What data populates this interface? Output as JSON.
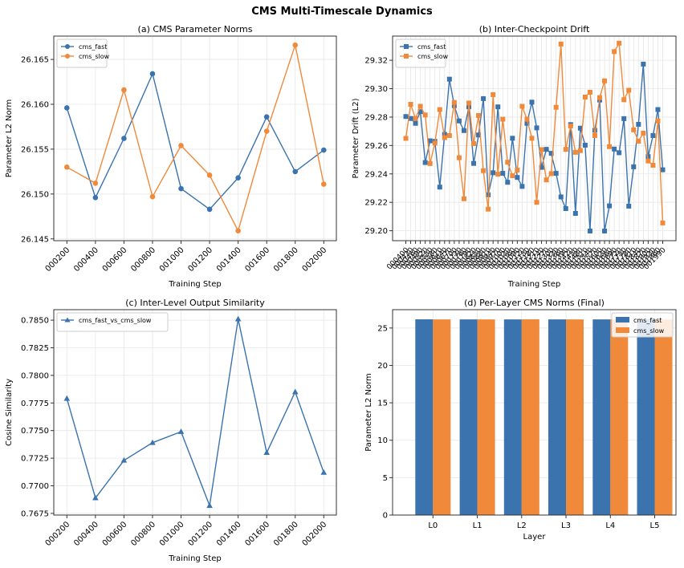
{
  "figure": {
    "title": "CMS Multi-Timescale Dynamics",
    "colors": {
      "cms_fast": "#3a73ae",
      "cms_slow": "#f0893a"
    }
  },
  "chart_data": [
    {
      "id": "a",
      "type": "line",
      "title": "(a) CMS Parameter Norms",
      "xlabel": "Training Step",
      "ylabel": "Parameter L2 Norm",
      "categories": [
        "000200",
        "000400",
        "000600",
        "000800",
        "001000",
        "001200",
        "001400",
        "001600",
        "001800",
        "002000"
      ],
      "ylim": [
        26.1448,
        26.1676
      ],
      "yticks": [
        26.145,
        26.15,
        26.155,
        26.16,
        26.165
      ],
      "ytick_labels": [
        "26.145",
        "26.150",
        "26.155",
        "26.160",
        "26.165"
      ],
      "grid": true,
      "legend": "top-left",
      "marker": "circle",
      "series": [
        {
          "name": "cms_fast",
          "color": "#3a73ae",
          "values": [
            26.1596,
            26.1496,
            26.1562,
            26.1634,
            26.1506,
            26.1483,
            26.1518,
            26.1586,
            26.1525,
            26.1549
          ]
        },
        {
          "name": "cms_slow",
          "color": "#f0893a",
          "values": [
            26.153,
            26.1512,
            26.1616,
            26.1497,
            26.1554,
            26.1521,
            26.1459,
            26.157,
            26.1666,
            26.1511
          ]
        }
      ]
    },
    {
      "id": "b",
      "type": "line",
      "title": "(b) Inter-Checkpoint Drift",
      "xlabel": "Training Step",
      "ylabel": "Parameter Drift (L2)",
      "ylim": [
        29.193,
        29.337
      ],
      "yticks": [
        29.2,
        29.22,
        29.24,
        29.26,
        29.28,
        29.3,
        29.32
      ],
      "ytick_labels": [
        "29.20",
        "29.22",
        "29.24",
        "29.26",
        "29.28",
        "29.30",
        "29.32"
      ],
      "grid": true,
      "legend": "top-left",
      "marker": "square",
      "xtick_label_note": "54 overlapping step labels, 000400 to 002000",
      "first_xtick_label": "000400",
      "last_xtick_label": "002000",
      "series": [
        {
          "name": "cms_fast",
          "color": "#3a73ae",
          "values": [
            29.2804,
            29.279,
            29.2756,
            29.2838,
            29.248,
            29.2633,
            29.2629,
            29.2307,
            29.2678,
            29.3067,
            29.288,
            29.2773,
            29.2705,
            29.2872,
            29.2474,
            29.2674,
            29.293,
            29.2253,
            29.2408,
            29.2872,
            29.2404,
            29.2341,
            29.2651,
            29.2375,
            29.2312,
            29.2756,
            29.2905,
            29.2724,
            29.2446,
            29.2573,
            29.2545,
            29.2404,
            29.2238,
            29.2156,
            29.2747,
            29.2122,
            29.2722,
            29.2602,
            29.1998,
            29.2707,
            29.292,
            29.1998,
            29.2175,
            29.2575,
            29.2549,
            29.2789,
            29.2173,
            29.245,
            29.2749,
            29.3173,
            29.2522,
            29.267,
            29.2853,
            29.2429
          ]
        },
        {
          "name": "cms_slow",
          "color": "#f0893a",
          "values": [
            29.265,
            29.289,
            29.279,
            29.2876,
            29.2815,
            29.2473,
            29.2617,
            29.2853,
            29.2655,
            29.267,
            29.2903,
            29.2514,
            29.2225,
            29.2899,
            29.2613,
            29.2811,
            29.2423,
            29.2152,
            29.2958,
            29.2398,
            29.2785,
            29.2482,
            29.2387,
            29.2427,
            29.2876,
            29.2785,
            29.2651,
            29.22,
            29.2571,
            29.2358,
            29.2402,
            29.2869,
            29.3314,
            29.2573,
            29.2737,
            29.2552,
            29.2564,
            29.2941,
            29.2975,
            29.267,
            29.2937,
            29.3055,
            29.2592,
            29.3261,
            29.332,
            29.2922,
            29.2989,
            29.271,
            29.263,
            29.2687,
            29.2491,
            29.2461,
            29.2773,
            29.2055
          ]
        }
      ]
    },
    {
      "id": "c",
      "type": "line",
      "title": "(c) Inter-Level Output Similarity",
      "xlabel": "Training Step",
      "ylabel": "Cosine Similarity",
      "categories": [
        "000200",
        "000400",
        "000600",
        "000800",
        "001000",
        "001200",
        "001400",
        "001600",
        "001800",
        "002000"
      ],
      "ylim": [
        0.76735,
        0.78595
      ],
      "yticks": [
        0.7675,
        0.77,
        0.7725,
        0.775,
        0.7775,
        0.78,
        0.7825,
        0.785
      ],
      "ytick_labels": [
        "0.7675",
        "0.7700",
        "0.7725",
        "0.7750",
        "0.7775",
        "0.7800",
        "0.7825",
        "0.7850"
      ],
      "grid": true,
      "legend": "top-left",
      "marker": "triangle",
      "series": [
        {
          "name": "cms_fast_vs_cms_slow",
          "color": "#3a73ae",
          "values": [
            0.7779,
            0.7689,
            0.7723,
            0.7739,
            0.7749,
            0.7682,
            0.7851,
            0.773,
            0.7785,
            0.7712
          ]
        }
      ]
    },
    {
      "id": "d",
      "type": "bar",
      "title": "(d) Per-Layer CMS Norms (Final)",
      "xlabel": "Layer",
      "ylabel": "Parameter L2 Norm",
      "categories": [
        "L0",
        "L1",
        "L2",
        "L3",
        "L4",
        "L5"
      ],
      "ylim": [
        0,
        27.45
      ],
      "yticks": [
        0,
        5,
        10,
        15,
        20,
        25
      ],
      "ytick_labels": [
        "0",
        "5",
        "10",
        "15",
        "20",
        "25"
      ],
      "grid": true,
      "legend": "top-right",
      "series": [
        {
          "name": "cms_fast",
          "color": "#3a73ae",
          "values": [
            26.16,
            26.15,
            26.15,
            26.15,
            26.15,
            26.15
          ]
        },
        {
          "name": "cms_slow",
          "color": "#f0893a",
          "values": [
            26.15,
            26.15,
            26.16,
            26.15,
            26.15,
            26.15
          ]
        }
      ]
    }
  ]
}
